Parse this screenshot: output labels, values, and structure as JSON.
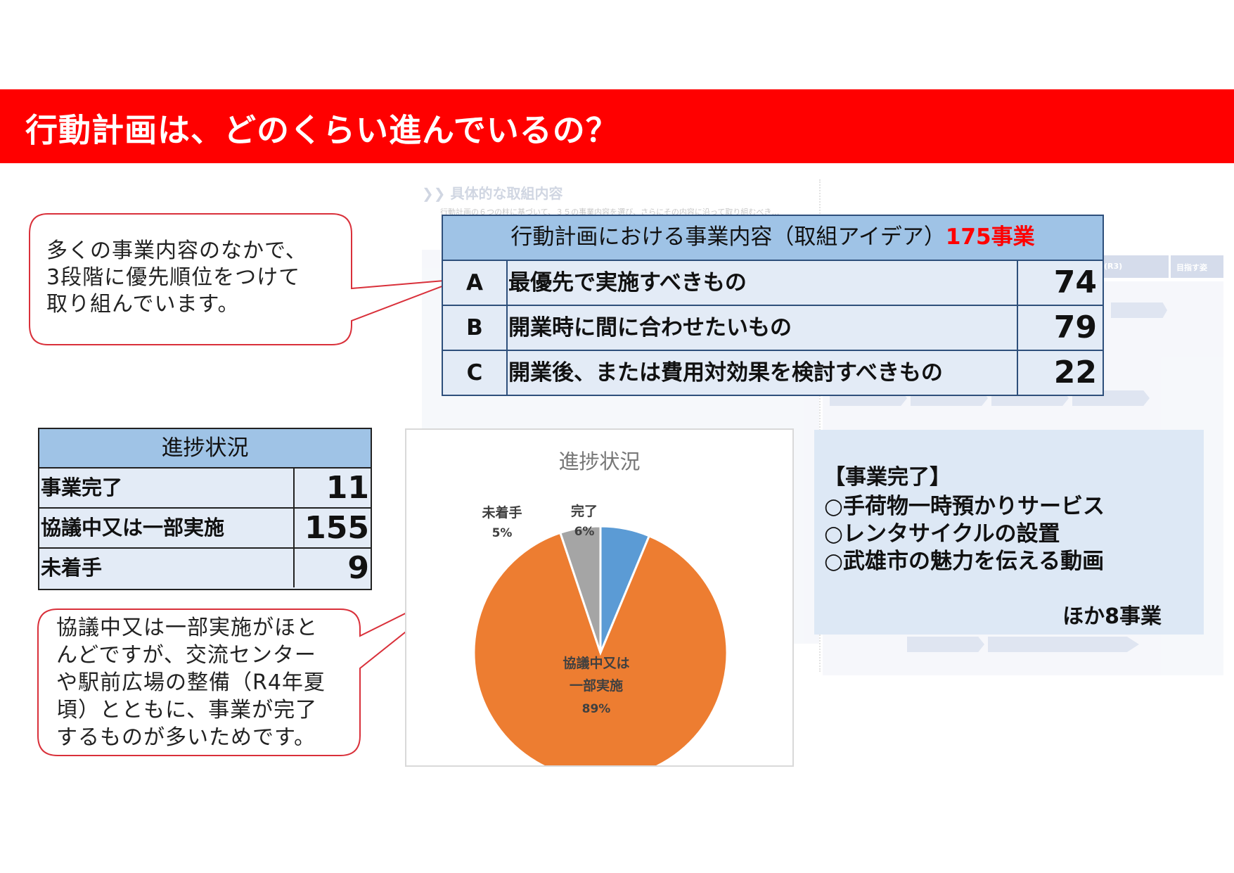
{
  "page": {
    "title": "行動計画は、どのくらい進んでいるの？"
  },
  "background_doc": {
    "heading": "具体的な取組内容",
    "subtitle": "行動計画の６つの柱に基づいて、３５の事業内容を選び、さらにその内容に沿って取り組むべき…",
    "column_headers": [
      "(R3)",
      "目指す姿"
    ]
  },
  "callout_top": {
    "lines": [
      "多くの事業内容のなかで、",
      "3段階に優先順位をつけて",
      "取り組んでいます。"
    ]
  },
  "callout_bottom": {
    "lines": [
      "協議中又は一部実施がほと",
      "んどですが、交流センター",
      "や駅前広場の整備（R4年夏",
      "頃）とともに、事業が完了",
      "するものが多いためです。"
    ]
  },
  "plan_table": {
    "header": "行動計画における事業内容（取組アイデア）",
    "total": "175事業",
    "rows": [
      {
        "letter": "A",
        "description": "最優先で実施すべきもの",
        "count": "74"
      },
      {
        "letter": "B",
        "description": "開業時に間に合わせたいもの",
        "count": "79"
      },
      {
        "letter": "C",
        "description": "開業後、または費用対効果を検討すべきもの",
        "count": "22"
      }
    ]
  },
  "progress_table": {
    "header": "進捗状況",
    "rows": [
      {
        "label": "事業完了",
        "count": "11"
      },
      {
        "label": "協議中又は一部実施",
        "count": "155"
      },
      {
        "label": "未着手",
        "count": "9"
      }
    ]
  },
  "chart_data": {
    "type": "pie",
    "title": "進捗状況",
    "slices": [
      {
        "name": "完了",
        "value": 11,
        "percent_label": "6%",
        "color": "#5b9bd5"
      },
      {
        "name": "協議中又は一部実施",
        "label_lines": [
          "協議中又は",
          "一部実施"
        ],
        "value": 155,
        "percent_label": "89%",
        "color": "#ed7d31"
      },
      {
        "name": "未着手",
        "value": 9,
        "percent_label": "5%",
        "color": "#a5a5a5"
      }
    ]
  },
  "completed_box": {
    "heading": "【事業完了】",
    "items": [
      "○手荷物一時預かりサービス",
      "○レンタサイクルの設置",
      "○武雄市の魅力を伝える動画"
    ],
    "more": "ほか8事業"
  },
  "colors": {
    "banner": "#ff0000",
    "callout_border": "#d9303a",
    "table_header": "#9fc3e6",
    "table_body": "#e3ebf6",
    "total_accent": "#ff0000"
  }
}
